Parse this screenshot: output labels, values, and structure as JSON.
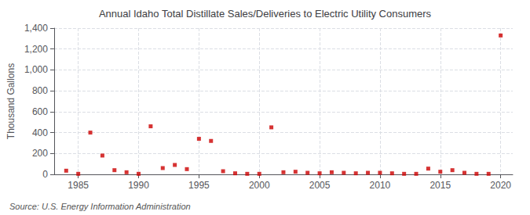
{
  "chart_data": {
    "type": "scatter",
    "title": "Annual Idaho Total Distillate Sales/Deliveries to Electric Utility Consumers",
    "ylabel": "Thousand Gallons",
    "annotation": "Source: U.S. Energy Information Administration",
    "x": [
      1984,
      1985,
      1986,
      1987,
      1988,
      1989,
      1990,
      1991,
      1992,
      1993,
      1994,
      1995,
      1996,
      1997,
      1998,
      1999,
      2000,
      2001,
      2002,
      2003,
      2004,
      2005,
      2006,
      2007,
      2008,
      2009,
      2010,
      2011,
      2012,
      2013,
      2014,
      2015,
      2016,
      2017,
      2018,
      2019,
      2020
    ],
    "values": [
      35,
      5,
      400,
      180,
      40,
      20,
      5,
      460,
      60,
      90,
      50,
      340,
      320,
      30,
      10,
      5,
      5,
      450,
      20,
      25,
      15,
      10,
      20,
      15,
      10,
      15,
      15,
      10,
      5,
      5,
      55,
      25,
      40,
      15,
      5,
      5,
      1330
    ],
    "color": "#cc0000",
    "marker": "square",
    "xlim": [
      1983,
      2021
    ],
    "xticks": [
      1985,
      1990,
      1995,
      2000,
      2005,
      2010,
      2015,
      2020
    ],
    "ylim": [
      0,
      1400
    ],
    "yticks": [
      0,
      200,
      400,
      600,
      800,
      {
        "value": 1000,
        "label": "1,000"
      },
      {
        "value": 1200,
        "label": "1,200"
      },
      {
        "value": 1400,
        "label": "1,400"
      }
    ],
    "grid": true
  }
}
